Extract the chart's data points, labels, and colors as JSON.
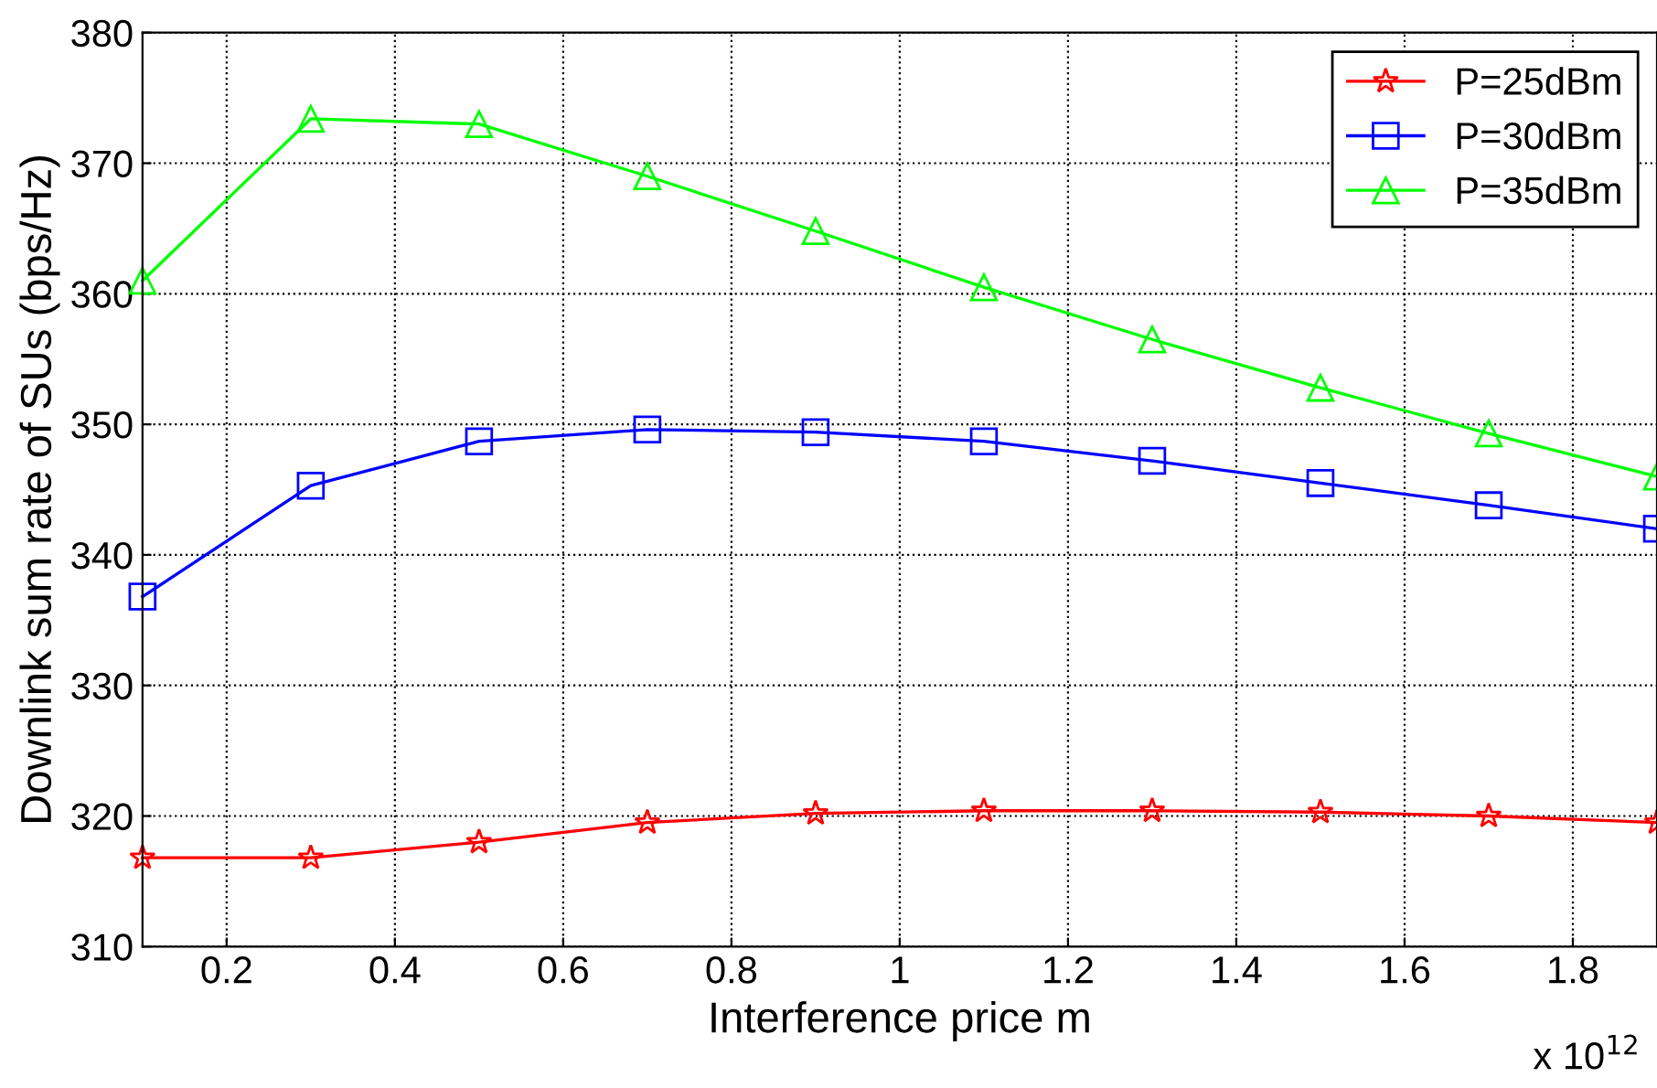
{
  "chart_data": {
    "type": "line",
    "xlabel": "Interference price m",
    "ylabel": "Downlink sum rate of SUs (bps/Hz)",
    "x": [
      0.1,
      0.3,
      0.5,
      0.7,
      0.9,
      1.1,
      1.3,
      1.5,
      1.7,
      1.9
    ],
    "series": [
      {
        "name": "P=25dBm",
        "color": "#ff0000",
        "marker": "star",
        "values": [
          316.8,
          316.8,
          318.0,
          319.5,
          320.2,
          320.4,
          320.4,
          320.3,
          320.0,
          319.5
        ]
      },
      {
        "name": "P=30dBm",
        "color": "#0000ff",
        "marker": "square",
        "values": [
          336.8,
          345.3,
          348.7,
          349.6,
          349.4,
          348.7,
          347.2,
          345.5,
          343.8,
          342.0
        ]
      },
      {
        "name": "P=35dBm",
        "color": "#00ff00",
        "marker": "triangle",
        "values": [
          361.0,
          373.4,
          373.0,
          369.0,
          364.8,
          360.5,
          356.5,
          352.8,
          349.3,
          346.0
        ]
      }
    ],
    "xlim": [
      0.1,
      1.9
    ],
    "xticks": [
      0.2,
      0.4,
      0.6,
      0.8,
      1,
      1.2,
      1.4,
      1.6,
      1.8
    ],
    "ylim": [
      310,
      380
    ],
    "yticks": [
      310,
      320,
      330,
      340,
      350,
      360,
      370,
      380
    ],
    "annotations": [
      "x 10$^{12}$"
    ],
    "grid": true,
    "legend": "top right",
    "line_style": "solid"
  }
}
